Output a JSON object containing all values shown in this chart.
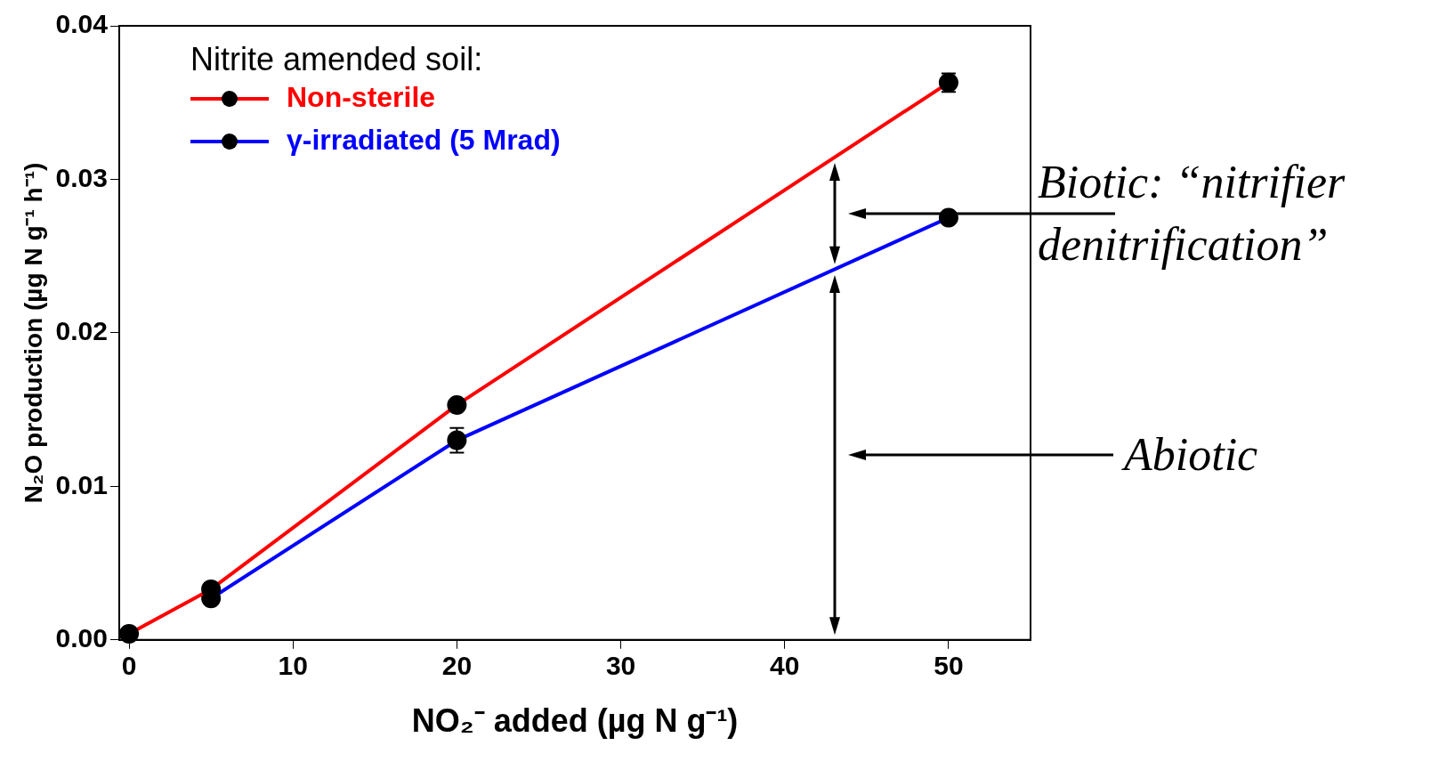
{
  "chart_data": {
    "type": "line",
    "xlabel": "NO₂⁻ added (µg N g⁻¹)",
    "ylabel": "N₂O production (µg N g⁻¹ h⁻¹)",
    "legend_title": "Nitrite amended soil:",
    "x": [
      0,
      5,
      20,
      50
    ],
    "series": [
      {
        "name": "Non-sterile",
        "color": "#ff0000",
        "values": [
          0.0004,
          0.0033,
          0.0153,
          0.0363
        ],
        "errors": [
          null,
          0.0004,
          null,
          0.0006
        ]
      },
      {
        "name": "γ-irradiated (5 Mrad)",
        "color": "#0000ff",
        "values": [
          null,
          0.0027,
          0.013,
          0.0275
        ],
        "errors": [
          null,
          null,
          0.0008,
          null
        ]
      }
    ],
    "xlim": [
      -0.6,
      55
    ],
    "xticks": [
      0,
      10,
      20,
      30,
      40,
      50
    ],
    "ylim": [
      0,
      0.04
    ],
    "yticks": [
      {
        "value": 0,
        "label": "0.00"
      },
      0.01,
      0.02,
      0.03,
      0.04
    ],
    "annotations": [
      "Biotic: “nitrifier denitrification”",
      "Abiotic"
    ],
    "grid": false,
    "legend": "top left",
    "marker": "circle",
    "line_style": "solid"
  }
}
